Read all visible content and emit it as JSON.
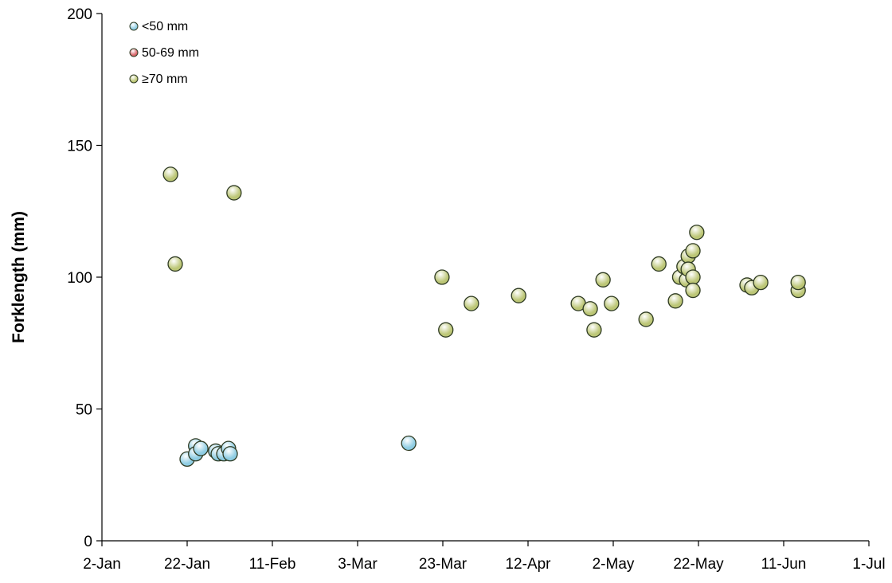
{
  "chart_data": {
    "type": "scatter",
    "y_label": "Forklength (mm)",
    "xlim": [
      2,
      182
    ],
    "xticks": [
      {
        "value": 2,
        "label": "2-Jan"
      },
      {
        "value": 22,
        "label": "22-Jan"
      },
      {
        "value": 42,
        "label": "11-Feb"
      },
      {
        "value": 62,
        "label": "3-Mar"
      },
      {
        "value": 82,
        "label": "23-Mar"
      },
      {
        "value": 102,
        "label": "12-Apr"
      },
      {
        "value": 122,
        "label": "2-May"
      },
      {
        "value": 142,
        "label": "22-May"
      },
      {
        "value": 162,
        "label": "11-Jun"
      },
      {
        "value": 182,
        "label": "1-Jul"
      }
    ],
    "ylim": [
      0,
      200
    ],
    "yticks": [
      0,
      50,
      100,
      150,
      200
    ],
    "legend": "upper left",
    "series": [
      {
        "name": "<50 mm",
        "color": "#8fcde3",
        "x": [
          22.0,
          24.0,
          24.0,
          25.2,
          28.7,
          29.3,
          30.6,
          31.7,
          32.1,
          74.0
        ],
        "values": [
          31,
          36,
          33,
          35,
          34,
          33,
          33,
          35,
          33,
          37
        ]
      },
      {
        "name": "50-69 mm",
        "color": "#d9676b",
        "x": [],
        "values": []
      },
      {
        "name": "≥70 mm",
        "color": "#bcc676",
        "x": [
          18.1,
          19.2,
          33.0,
          81.8,
          82.7,
          88.7,
          99.8,
          113.8,
          116.6,
          117.5,
          119.6,
          121.6,
          129.7,
          132.7,
          136.6,
          137.6,
          138.6,
          139.2,
          139.6,
          139.6,
          140.7,
          140.7,
          140.7,
          141.6,
          153.4,
          154.5,
          156.6,
          165.4,
          165.4
        ],
        "values": [
          139,
          105,
          132,
          100,
          80,
          90,
          93,
          90,
          88,
          80,
          99,
          90,
          84,
          105,
          91,
          100,
          104,
          99,
          108,
          103,
          110,
          100,
          95,
          117,
          97,
          96,
          98,
          95,
          98
        ]
      }
    ]
  }
}
